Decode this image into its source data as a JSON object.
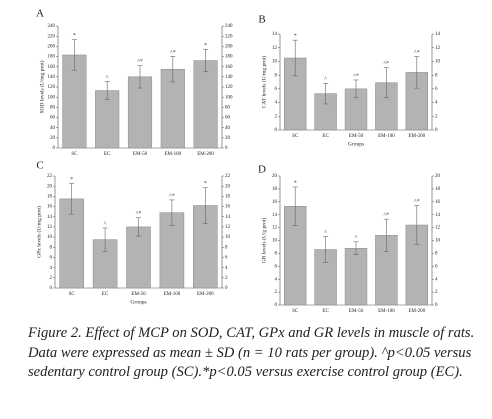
{
  "chart_data": [
    {
      "type": "bar",
      "panel": "A",
      "y_label": "SOD levels (U/mg prot)",
      "categories": [
        "SC",
        "EC",
        "EM-50",
        "EM-100",
        "EM-200"
      ],
      "values": [
        183,
        113,
        140,
        155,
        172
      ],
      "errors": [
        30,
        18,
        22,
        25,
        22
      ],
      "annotations": [
        "*",
        "^",
        "^*",
        "^*",
        "*"
      ],
      "color": "#b3b3b3",
      "ylim": [
        0,
        240
      ],
      "yticks": [
        0,
        20,
        40,
        60,
        80,
        100,
        120,
        140,
        160,
        180,
        200,
        220,
        240
      ]
    },
    {
      "type": "bar",
      "panel": "B",
      "y_label": "CAT levels (U/mg prot)",
      "x_label": "Groups",
      "categories": [
        "SC",
        "EC",
        "EM-50",
        "EM-100",
        "EM-200"
      ],
      "values": [
        10.5,
        5.3,
        6.0,
        6.9,
        8.4
      ],
      "errors": [
        2.6,
        1.5,
        1.3,
        2.2,
        2.3
      ],
      "annotations": [
        "*",
        "^",
        "^*",
        "^*",
        "^*"
      ],
      "color": "#b3b3b3",
      "ylim": [
        0,
        14
      ],
      "yticks": [
        0,
        2,
        4,
        6,
        8,
        10,
        12,
        14
      ]
    },
    {
      "type": "bar",
      "panel": "C",
      "y_label": "GPx levels (U/mg prot)",
      "x_label": "Groups",
      "categories": [
        "SC",
        "EC",
        "EM-50",
        "EM-100",
        "EM-200"
      ],
      "values": [
        17.5,
        9.5,
        12,
        14.8,
        16.2
      ],
      "errors": [
        3,
        2.3,
        1.8,
        2.5,
        3.5
      ],
      "annotations": [
        "*",
        "^",
        "^*",
        "^*",
        "*"
      ],
      "color": "#b3b3b3",
      "ylim": [
        0,
        22
      ],
      "yticks": [
        0,
        2,
        4,
        6,
        8,
        10,
        12,
        14,
        16,
        18,
        20,
        22
      ]
    },
    {
      "type": "bar",
      "panel": "D",
      "y_label": "GR levels (U/g prot)",
      "categories": [
        "SC",
        "EC",
        "EM-50",
        "EM-100",
        "EM-200"
      ],
      "values": [
        15.3,
        8.6,
        8.8,
        10.8,
        12.4
      ],
      "errors": [
        3,
        2,
        1,
        2.5,
        3
      ],
      "annotations": [
        "*",
        "^",
        "^",
        "^*",
        "^*"
      ],
      "color": "#b3b3b3",
      "ylim": [
        0,
        20
      ],
      "yticks": [
        0,
        2,
        4,
        6,
        8,
        10,
        12,
        14,
        16,
        18,
        20
      ]
    }
  ],
  "caption": "Figure 2. Effect of MCP on SOD, CAT, GPx and GR levels in muscle of rats. Data were expressed as mean ± SD (n = 10 rats per group). ^p<0.05 versus sedentary control group (SC).*p<0.05 versus exercise control group (EC)."
}
